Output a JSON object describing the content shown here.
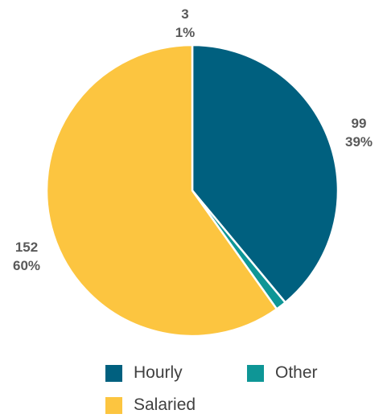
{
  "chart_data": {
    "type": "pie",
    "title": "",
    "slices": [
      {
        "name": "Hourly",
        "value": 99,
        "percent_label": "39%",
        "value_label": "99",
        "color": "#00607f"
      },
      {
        "name": "Other",
        "value": 3,
        "percent_label": "1%",
        "value_label": "3",
        "color": "#0e9696"
      },
      {
        "name": "Salaried",
        "value": 152,
        "percent_label": "60%",
        "value_label": "152",
        "color": "#fcc540"
      }
    ],
    "legend_position": "bottom"
  },
  "legend": {
    "items": [
      {
        "label": "Hourly",
        "color": "#00607f"
      },
      {
        "label": "Other",
        "color": "#0e9696"
      },
      {
        "label": "Salaried",
        "color": "#fcc540"
      }
    ]
  }
}
